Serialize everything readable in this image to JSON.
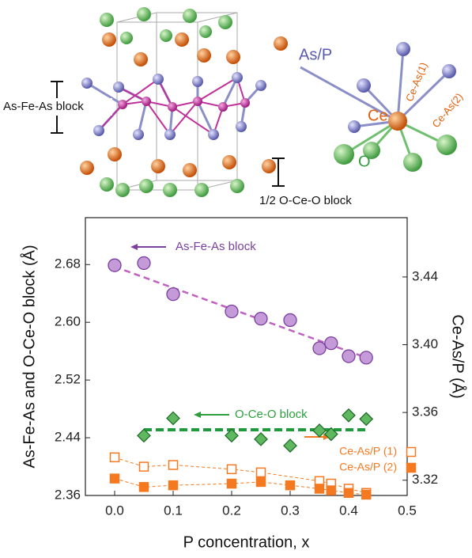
{
  "structure": {
    "left_label": "As-Fe-As block",
    "bottom_label": "1/2 O-Ce-O block",
    "aspn": "As/P",
    "ce": "Ce",
    "o": "O",
    "bond1": "Ce-As(1)",
    "bond2": "Ce-As(2)"
  },
  "chart_data": {
    "type": "scatter",
    "xlabel": "P concentration, x",
    "ylabel": "As-Fe-As and O-Ce-O block (Å)",
    "y2label": "Ce-As/P (Å)",
    "xlim": [
      -0.05,
      0.5
    ],
    "ylim": [
      2.36,
      2.745
    ],
    "y2lim": [
      3.311,
      3.475
    ],
    "xticks": [
      {
        "value": 0,
        "label": "0.0"
      },
      0.1,
      0.2,
      0.3,
      0.4,
      0.5
    ],
    "yticks": [
      2.36,
      2.44,
      2.52,
      {
        "value": 2.6,
        "label": "2.60"
      },
      2.68
    ],
    "y2ticks": [
      3.32,
      3.36,
      {
        "value": 3.4,
        "label": "3.40"
      },
      3.44
    ],
    "annotations": [
      {
        "text": "As-Fe-As block",
        "color": "#7b3f9e"
      },
      {
        "text": "O-Ce-O block",
        "color": "#2e9e3e"
      }
    ],
    "fit_lines": [
      {
        "color": "#c060c0",
        "x": [
          0,
          0.43
        ],
        "values": [
          2.677,
          2.551
        ]
      },
      {
        "color": "#1e9a3a",
        "x": [
          0.05,
          0.43
        ],
        "values": [
          2.451,
          2.451
        ]
      }
    ],
    "series": [
      {
        "marker": "circle",
        "color": "#c49ad8",
        "x": [
          0,
          0.05,
          0.1,
          0.2,
          0.25,
          0.3,
          0.35,
          0.37,
          0.4,
          0.43
        ],
        "values": [
          2.679,
          2.682,
          2.639,
          2.615,
          2.605,
          2.603,
          2.564,
          2.571,
          2.553,
          2.551
        ]
      },
      {
        "marker": "diamond",
        "color": "#5fb760",
        "x": [
          0.05,
          0.1,
          0.2,
          0.25,
          0.3,
          0.35,
          0.37,
          0.4,
          0.43
        ],
        "values": [
          2.443,
          2.467,
          2.443,
          2.438,
          2.429,
          2.45,
          2.445,
          2.471,
          2.466
        ]
      },
      {
        "name": "Ce-As/P (1)",
        "marker": "open-square",
        "color": "#f47920",
        "axis": "y2",
        "x": [
          0,
          0.05,
          0.1,
          0.2,
          0.25,
          0.35,
          0.37,
          0.4,
          0.43
        ],
        "values": [
          3.3335,
          3.328,
          3.329,
          3.3265,
          3.3246,
          3.3195,
          3.318,
          3.315,
          3.3125
        ]
      },
      {
        "name": "Ce-As/P (2)",
        "marker": "square",
        "color": "#f47920",
        "axis": "y2",
        "x": [
          0,
          0.05,
          0.1,
          0.2,
          0.25,
          0.3,
          0.35,
          0.37,
          0.4,
          0.43
        ],
        "values": [
          3.321,
          3.316,
          3.317,
          3.318,
          3.319,
          3.317,
          3.315,
          3.314,
          3.3125,
          3.3115
        ]
      }
    ]
  }
}
